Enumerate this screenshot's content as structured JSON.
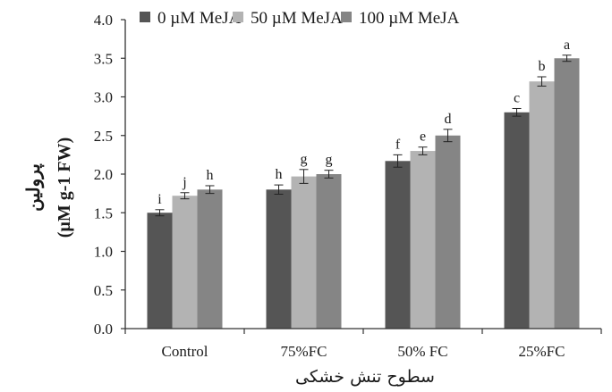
{
  "chart_data": {
    "type": "bar",
    "categories": [
      "Control",
      "75%FC",
      "50% FC",
      "25%FC"
    ],
    "series": [
      {
        "name": "0 µM MeJA",
        "color": "#555555",
        "values": [
          1.5,
          1.8,
          2.17,
          2.8
        ],
        "errors": [
          0.04,
          0.06,
          0.08,
          0.05
        ],
        "letters": [
          "i",
          "h",
          "f",
          "c"
        ]
      },
      {
        "name": "50 µM MeJA",
        "color": "#b3b3b3",
        "values": [
          1.72,
          1.97,
          2.3,
          3.2
        ],
        "errors": [
          0.04,
          0.09,
          0.05,
          0.06
        ],
        "letters": [
          "j",
          "g",
          "e",
          "b"
        ]
      },
      {
        "name": "100 µM MeJA",
        "color": "#858585",
        "values": [
          1.8,
          2.0,
          2.5,
          3.5
        ],
        "errors": [
          0.05,
          0.05,
          0.08,
          0.04
        ],
        "letters": [
          "h",
          "g",
          "d",
          "a"
        ]
      }
    ],
    "yticks": [
      "0.0",
      "0.5",
      "1.0",
      "1.5",
      "2.0",
      "2.5",
      "3.0",
      "3.5",
      "4.0"
    ],
    "ylim": [
      0,
      4
    ],
    "ylabel_line1": "پرولین",
    "ylabel_line2": "(µM g-1 FW)",
    "xlabel": "سطوح تنش خشکی",
    "grid": false,
    "legend_position": "top"
  }
}
